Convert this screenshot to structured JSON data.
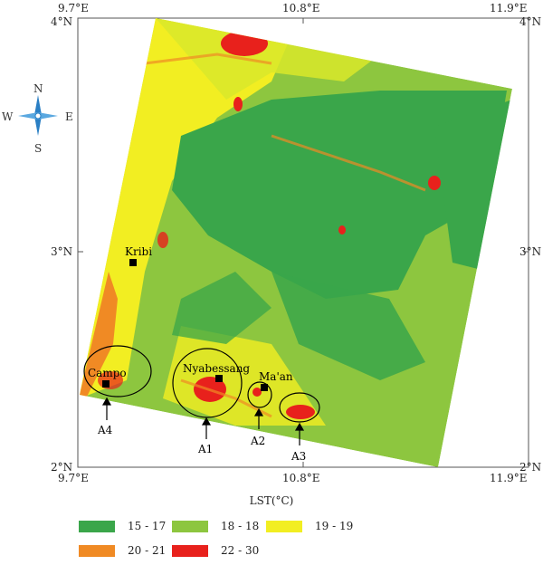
{
  "map": {
    "top_ticks": [
      "9.7°E",
      "10.8°E",
      "11.9°E"
    ],
    "bottom_ticks": [
      "9.7°E",
      "10.8°E",
      "11.9°E"
    ],
    "left_ticks": [
      "4°N",
      "3°N",
      "2°N"
    ],
    "right_ticks": [
      "4°N",
      "3°N",
      "2°N"
    ],
    "compass": {
      "n": "N",
      "s": "S",
      "e": "E",
      "w": "W"
    },
    "cities": [
      {
        "name": "Kribi"
      },
      {
        "name": "Campo"
      },
      {
        "name": "Nyabessang"
      },
      {
        "name": "Ma'an"
      }
    ],
    "areas": [
      "A1",
      "A2",
      "A3",
      "A4"
    ],
    "axis_title": "LST(°C)"
  },
  "legend": {
    "items": [
      {
        "label": "15 - 17",
        "color": "#3aa64a"
      },
      {
        "label": "18 - 18",
        "color": "#8dc63f"
      },
      {
        "label": "19 - 19",
        "color": "#f2ee22"
      },
      {
        "label": "20 - 21",
        "color": "#f08a24"
      },
      {
        "label": "22 - 30",
        "color": "#e8211c"
      }
    ]
  }
}
